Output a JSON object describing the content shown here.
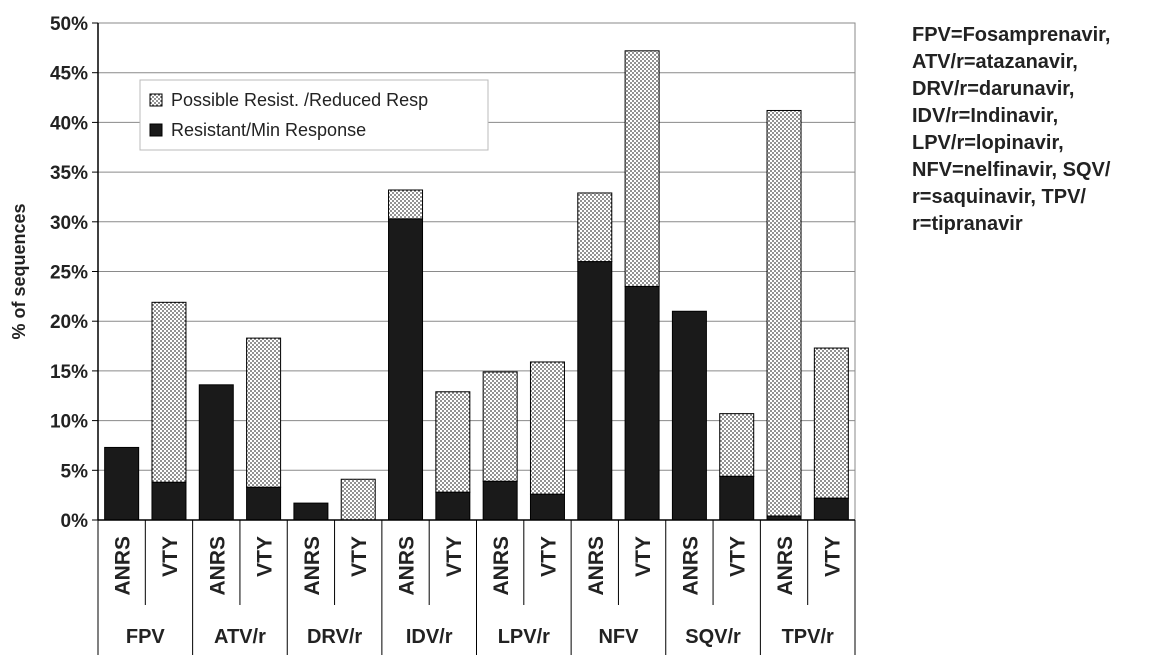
{
  "chart_data": {
    "type": "bar",
    "stacked": true,
    "ylabel": "% of sequences",
    "ylim": [
      0,
      50
    ],
    "yticks": [
      0,
      5,
      10,
      15,
      20,
      25,
      30,
      35,
      40,
      45,
      50
    ],
    "ytick_suffix": "%",
    "grid": true,
    "legend_position": "top-left inside plot",
    "groups": [
      "FPV",
      "ATV/r",
      "DRV/r",
      "IDV/r",
      "LPV/r",
      "NFV",
      "SQV/r",
      "TPV/r"
    ],
    "categories": [
      "ANRS",
      "VTY",
      "ANRS",
      "VTY",
      "ANRS",
      "VTY",
      "ANRS",
      "VTY",
      "ANRS",
      "VTY",
      "ANRS",
      "VTY",
      "ANRS",
      "VTY",
      "ANRS",
      "VTY"
    ],
    "series": [
      {
        "name": "Resistant/Min Response",
        "color": "#1a1a1a",
        "pattern": "solid",
        "values": [
          7.3,
          3.8,
          13.6,
          3.3,
          1.7,
          0.0,
          30.3,
          2.8,
          3.9,
          2.6,
          26.0,
          23.5,
          21.0,
          4.4,
          0.4,
          2.2
        ]
      },
      {
        "name": "Possible Resist. /Reduced Resp",
        "color": "#ffffff",
        "pattern": "dotted",
        "values": [
          0.0,
          18.1,
          0.0,
          15.0,
          0.0,
          4.1,
          2.9,
          10.1,
          11.0,
          13.3,
          6.9,
          23.7,
          0.0,
          6.3,
          40.8,
          15.1
        ]
      }
    ],
    "legend_order": [
      1,
      0
    ]
  },
  "note": {
    "lines": [
      "FPV=Fosamprenavir,",
      "ATV/r=atazanavir,",
      "DRV/r=darunavir,",
      "IDV/r=Indinavir,",
      "LPV/r=lopinavir,",
      "NFV=nelfinavir, SQV/",
      "r=saquinavir, TPV/",
      "r=tipranavir"
    ]
  }
}
